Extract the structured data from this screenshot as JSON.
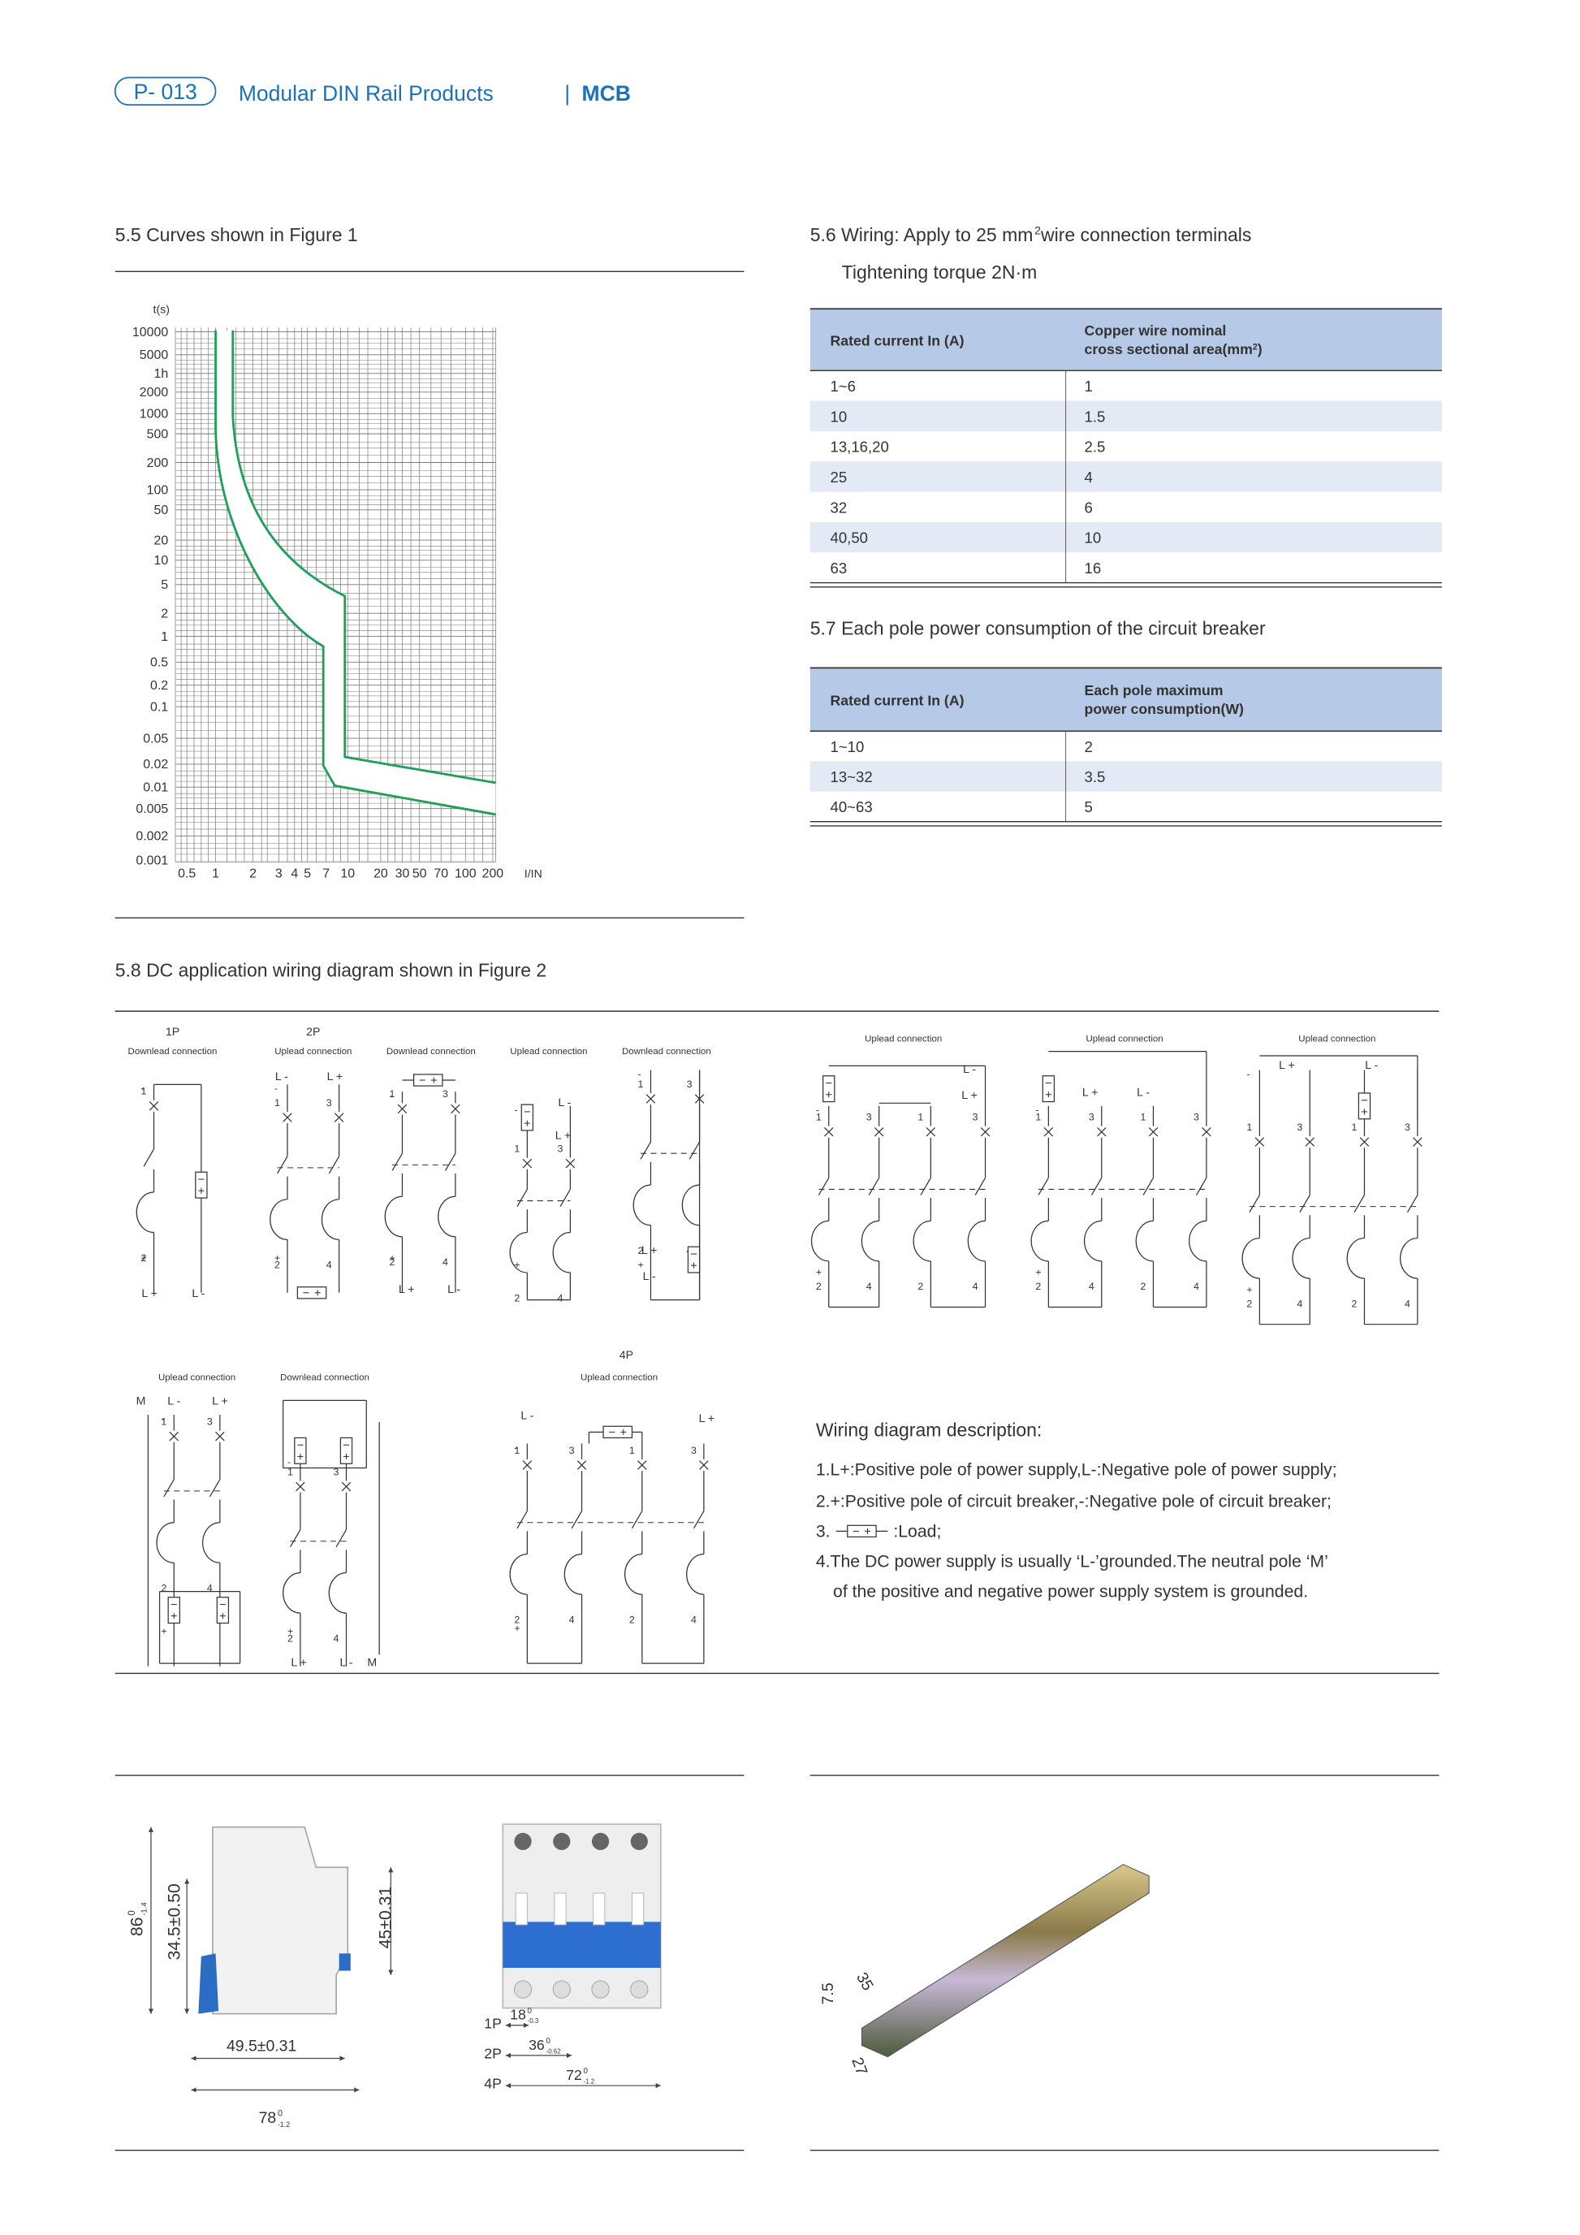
{
  "header": {
    "page": "P- 013",
    "title": "Modular DIN Rail Products",
    "separator": "|",
    "category": "MCB"
  },
  "section_5_5": {
    "heading": "5.5 Curves shown in Figure 1",
    "y_unit": "t(s)",
    "y_labels": [
      "10000",
      "5000",
      "1h",
      "2000",
      "1000",
      "500",
      "200",
      "100",
      "50",
      "20",
      "10",
      "5",
      "2",
      "1",
      "0.5",
      "0.2",
      "0.1",
      "0.05",
      "0.02",
      "0.01",
      "0.005",
      "0.002",
      "0.001"
    ],
    "x_labels": [
      "0.5",
      "1",
      "2",
      "3",
      "4",
      "5",
      "7",
      "10",
      "20",
      "30",
      "50",
      "70",
      "100",
      "200"
    ],
    "x_unit": "I/IN"
  },
  "section_5_6": {
    "heading": "5.6 Wiring: Apply to 25 mm",
    "heading_sup": "2",
    "heading_end": " wire connection terminals",
    "subheading": "Tightening torque 2N·m",
    "table": {
      "col1": "Rated current In (A)",
      "col2_line1": "Copper wire nominal",
      "col2_line2": "cross sectional area(mm",
      "col2_sup": "2",
      "col2_end": ")",
      "rows": [
        [
          "1~6",
          "1"
        ],
        [
          "10",
          "1.5"
        ],
        [
          "13,16,20",
          "2.5"
        ],
        [
          "25",
          "4"
        ],
        [
          "32",
          "6"
        ],
        [
          "40,50",
          "10"
        ],
        [
          "63",
          "16"
        ]
      ]
    }
  },
  "section_5_7": {
    "heading": "5.7 Each pole power consumption of the circuit breaker",
    "table": {
      "col1": "Rated current In (A)",
      "col2_line1": "Each pole maximum",
      "col2_line2": "power consumption(W)",
      "rows": [
        [
          "1~10",
          "2"
        ],
        [
          "13~32",
          "3.5"
        ],
        [
          "40~63",
          "5"
        ]
      ]
    }
  },
  "section_5_8": {
    "heading": "5.8 DC application wiring diagram shown in Figure 2",
    "group_labels": [
      "1P",
      "2P",
      "4P"
    ],
    "connections": [
      "Downlead connection",
      "Uplead connection",
      "Downlead connection",
      "Uplead connection",
      "Downlead connection",
      "Uplead connection",
      "Uplead connection",
      "Uplead connection",
      "Uplead connection",
      "Downlead connection",
      "Uplead connection"
    ],
    "terminal_symbols": {
      "t1": "1",
      "t2": "2",
      "t3": "3",
      "t4": "4",
      "lplus": "L +",
      "lminus": "L -",
      "neutral": "M",
      "plus": "+",
      "minus": "-"
    },
    "description": {
      "title": "Wiring diagram description:",
      "item1": "1.L+:Positive pole of power supply,L-:Negative pole of power supply;",
      "item2": "2.+:Positive pole of circuit breaker,-:Negative pole of circuit breaker;",
      "item3_prefix": "3.",
      "item3_suffix": ":Load;",
      "item4_line1": "4.The DC power supply is usually ‘L-’grounded.The neutral pole ‘M’",
      "item4_line2": "of the positive and negative power supply system is grounded."
    }
  },
  "dimensions": {
    "height": {
      "main": "86",
      "upper": "0",
      "lower": "-1.4"
    },
    "inner_height": "34.5±0.50",
    "front_height": "45±0.31",
    "inner_depth": "49.5±0.31",
    "depth": {
      "main": "78",
      "upper": "0",
      "lower": "-1.2"
    },
    "poles": [
      "1P",
      "2P",
      "4P"
    ],
    "w1": {
      "main": "18",
      "upper": "0",
      "lower": "-0.3"
    },
    "w2": {
      "main": "36",
      "upper": "0",
      "lower": "-0.62"
    },
    "w4": {
      "main": "72",
      "upper": "0",
      "lower": "-1.2"
    },
    "rail_depth": "7.5",
    "rail_width": "35",
    "rail_inner": "27"
  }
}
